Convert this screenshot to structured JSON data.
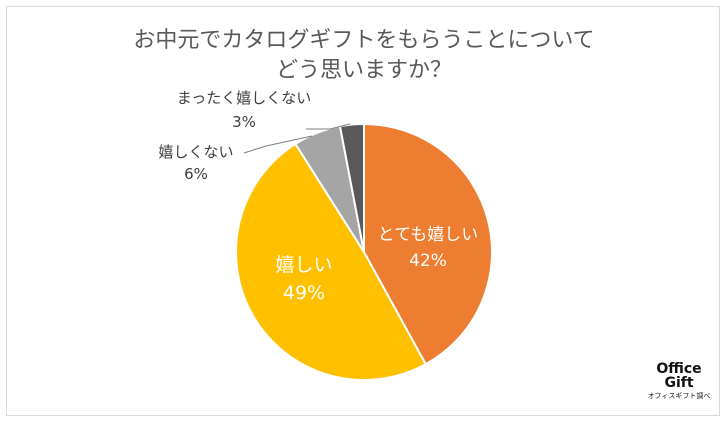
{
  "title_lines": [
    "お中元でカタログギフトをもらうことについて",
    "どう思いますか？"
  ],
  "chart_data": {
    "type": "pie",
    "title": "お中元でカタログギフトをもらうことについてどう思いますか？",
    "slices": [
      {
        "label": "とても嬉しい",
        "value": 42,
        "value_label": "42%",
        "color": "#ED7D31",
        "label_color": "#ffffff"
      },
      {
        "label": "嬉しい",
        "value": 49,
        "value_label": "49%",
        "color": "#FFC000",
        "label_color": "#ffffff"
      },
      {
        "label": "嬉しくない",
        "value": 6,
        "value_label": "6%",
        "color": "#A5A5A5",
        "label_color": "#404040"
      },
      {
        "label": "まったく嬉しくない",
        "value": 3,
        "value_label": "3%",
        "color": "#595959",
        "label_color": "#404040"
      }
    ],
    "start_angle": "12 o'clock",
    "direction": "clockwise"
  },
  "logo": {
    "line1": "Office",
    "line2": "Gift",
    "caption": "オフィスギフト調べ"
  }
}
